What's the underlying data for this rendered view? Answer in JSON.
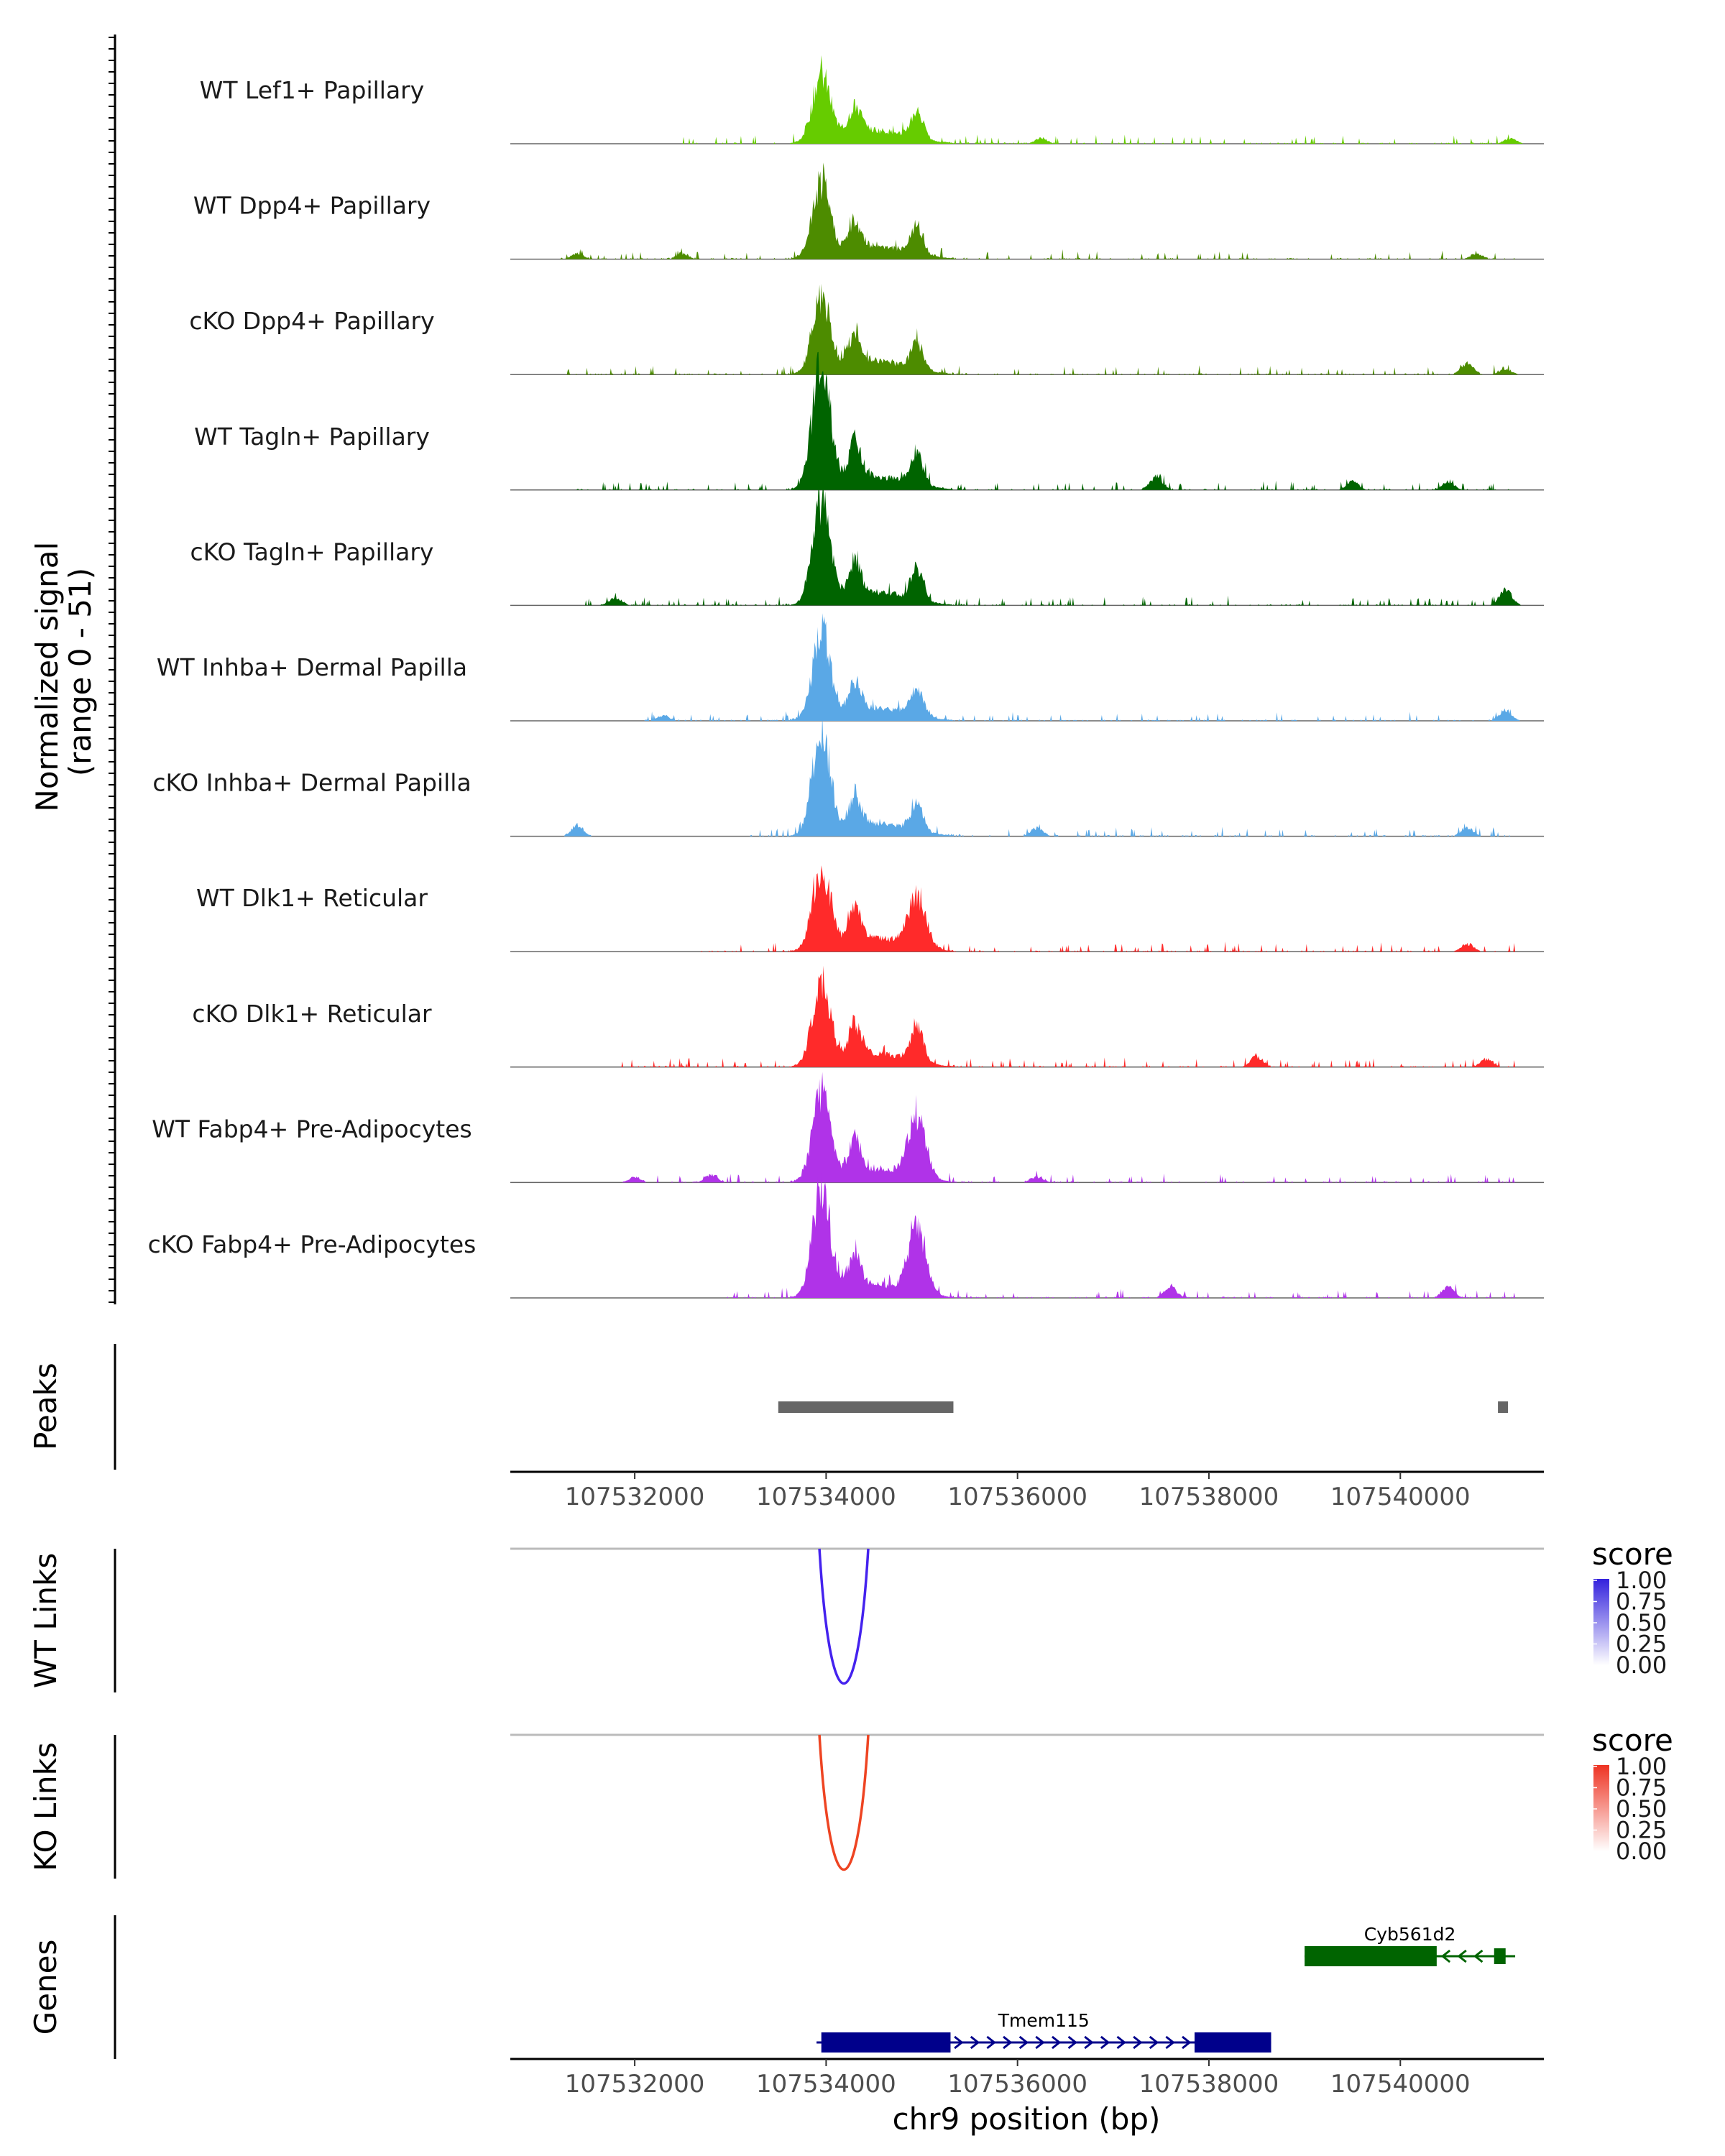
{
  "chart_data": {
    "type": "area",
    "title": "",
    "region": {
      "chrom": "chr9",
      "start": 107530700,
      "end": 107541500
    },
    "xlabel": "chr9 position (bp)",
    "x_ticks": [
      107532000,
      107534000,
      107536000,
      107538000,
      107540000
    ],
    "x_tick_labels": [
      "107532000",
      "107534000",
      "107536000",
      "107538000",
      "107540000"
    ],
    "coverage_ylabel": [
      "Normalized signal",
      "(range 0 - 51)"
    ],
    "ylim": [
      0,
      51
    ],
    "tracks": [
      {
        "name": "WT Lef1+ Papillary",
        "color": "#66cc00",
        "peaks": [
          [
            107533950,
            24
          ],
          [
            107534300,
            10
          ],
          [
            107534950,
            10
          ],
          [
            107536250,
            2
          ],
          [
            107541150,
            2
          ]
        ],
        "bg": [
          107532500,
          107541200
        ]
      },
      {
        "name": "WT Dpp4+ Papillary",
        "color": "#4d8c00",
        "peaks": [
          [
            107533950,
            26
          ],
          [
            107534300,
            10
          ],
          [
            107534950,
            10
          ],
          [
            107531400,
            2
          ],
          [
            107532500,
            2
          ],
          [
            107540800,
            2
          ]
        ],
        "bg": [
          107531200,
          107541200
        ]
      },
      {
        "name": "cKO Dpp4+ Papillary",
        "color": "#4d8c00",
        "peaks": [
          [
            107533950,
            27
          ],
          [
            107534300,
            12
          ],
          [
            107534950,
            10
          ],
          [
            107540700,
            4
          ],
          [
            107541100,
            2
          ]
        ],
        "bg": [
          107531200,
          107541200
        ]
      },
      {
        "name": "WT Tagln+ Papillary",
        "color": "#006400",
        "peaks": [
          [
            107533950,
            45
          ],
          [
            107534300,
            14
          ],
          [
            107534950,
            12
          ],
          [
            107537450,
            5
          ],
          [
            107539500,
            3
          ],
          [
            107540500,
            3
          ]
        ],
        "bg": [
          107531400,
          107541200
        ]
      },
      {
        "name": "cKO Tagln+ Papillary",
        "color": "#006400",
        "peaks": [
          [
            107533950,
            37
          ],
          [
            107534300,
            12
          ],
          [
            107534950,
            12
          ],
          [
            107531800,
            3
          ],
          [
            107541100,
            6
          ]
        ],
        "bg": [
          107531400,
          107541200
        ]
      },
      {
        "name": "WT Inhba+ Dermal Papilla",
        "color": "#5aa8e6",
        "peaks": [
          [
            107533950,
            31
          ],
          [
            107534300,
            10
          ],
          [
            107534950,
            10
          ],
          [
            107532300,
            2
          ],
          [
            107541100,
            4
          ]
        ],
        "bg": [
          107532000,
          107541200
        ]
      },
      {
        "name": "cKO Inhba+ Dermal Papilla",
        "color": "#5aa8e6",
        "peaks": [
          [
            107533950,
            37
          ],
          [
            107534300,
            10
          ],
          [
            107534950,
            10
          ],
          [
            107531400,
            4
          ],
          [
            107536200,
            3
          ],
          [
            107540700,
            3
          ]
        ],
        "bg": [
          107533200,
          107541200
        ]
      },
      {
        "name": "WT Dlk1+ Reticular",
        "color": "#ff2a2a",
        "peaks": [
          [
            107533950,
            29
          ],
          [
            107534300,
            12
          ],
          [
            107534950,
            18
          ],
          [
            107540700,
            3
          ]
        ],
        "bg": [
          107532700,
          107541200
        ]
      },
      {
        "name": "cKO Dlk1+ Reticular",
        "color": "#ff2a2a",
        "peaks": [
          [
            107533950,
            30
          ],
          [
            107534300,
            12
          ],
          [
            107534950,
            14
          ],
          [
            107538500,
            4
          ],
          [
            107540900,
            3
          ]
        ],
        "bg": [
          107531800,
          107541200
        ]
      },
      {
        "name": "WT Fabp4+ Pre-Adipocytes",
        "color": "#b033e8",
        "peaks": [
          [
            107533950,
            32
          ],
          [
            107534300,
            12
          ],
          [
            107534950,
            22
          ],
          [
            107532000,
            2
          ],
          [
            107532800,
            3
          ],
          [
            107536200,
            2
          ]
        ],
        "bg": [
          107532000,
          107541200
        ]
      },
      {
        "name": "cKO Fabp4+ Pre-Adipocytes",
        "color": "#b033e8",
        "peaks": [
          [
            107533950,
            40
          ],
          [
            107534300,
            12
          ],
          [
            107534950,
            25
          ],
          [
            107537600,
            4
          ],
          [
            107540500,
            4
          ]
        ],
        "bg": [
          107532900,
          107541200
        ]
      }
    ],
    "peaks_track": {
      "label": "Peaks",
      "color": "#666666",
      "intervals": [
        [
          107533500,
          107535330
        ],
        [
          107541020,
          107541120
        ]
      ]
    },
    "link_tracks": [
      {
        "label": "WT Links",
        "color": "#4422ee",
        "score": 1.0,
        "start": 107533930,
        "end": 107534440,
        "legend_title": "score",
        "legend_ticks": [
          "1.00",
          "0.75",
          "0.50",
          "0.25",
          "0.00"
        ],
        "gradient_colors": [
          "#3322dd",
          "#ffffff"
        ]
      },
      {
        "label": "KO Links",
        "color": "#ee4422",
        "score": 1.0,
        "start": 107533930,
        "end": 107534440,
        "legend_title": "score",
        "legend_ticks": [
          "1.00",
          "0.75",
          "0.50",
          "0.25",
          "0.00"
        ],
        "gradient_colors": [
          "#ee3322",
          "#ffffff"
        ]
      }
    ],
    "genes_track": {
      "label": "Genes",
      "genes": [
        {
          "name": "Cyb561d2",
          "color": "#006400",
          "strand": "-",
          "start": 107539000,
          "end": 107541200,
          "exons": [
            [
              107539000,
              107540380
            ],
            [
              107540980,
              107541100
            ]
          ]
        },
        {
          "name": "Tmem115",
          "color": "#00008b",
          "strand": "+",
          "start": 107533900,
          "end": 107538650,
          "exons": [
            [
              107533950,
              107535300
            ],
            [
              107537850,
              107538650
            ]
          ]
        }
      ]
    }
  }
}
